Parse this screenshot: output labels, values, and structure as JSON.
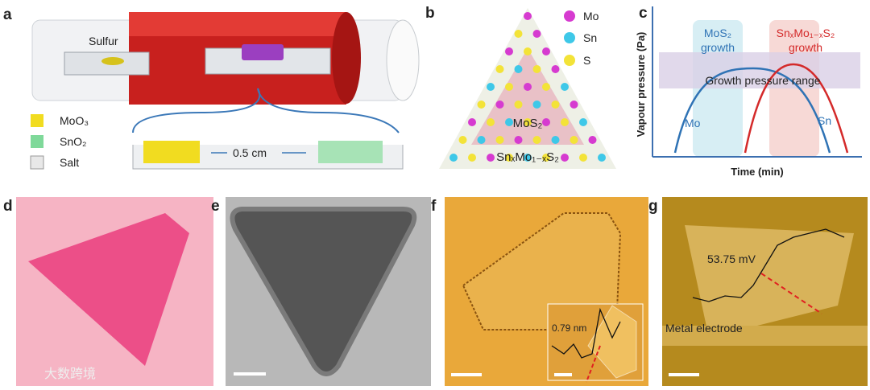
{
  "panels": {
    "a": {
      "label": "a",
      "sulfur": "Sulfur",
      "distance": "0.5 cm",
      "legend": [
        "MoO₃",
        "SnO₂",
        "Salt"
      ]
    },
    "b": {
      "label": "b",
      "legend": [
        "Mo",
        "Sn",
        "S"
      ],
      "core": "MoS₂",
      "shell": "SnₓMo₁₋ₓS₂"
    },
    "c": {
      "label": "c",
      "box1": [
        "MoS₂",
        "growth"
      ],
      "box2": [
        "SnₓMo₁₋ₓS₂",
        "growth"
      ],
      "band": "Growth pressure range",
      "curve1": "Mo",
      "curve2": "Sn",
      "y_axis": "Vapour pressure (Pa)",
      "x_axis": "Time (min)"
    },
    "d": {
      "label": "d"
    },
    "e": {
      "label": "e"
    },
    "f": {
      "label": "f",
      "inset": "0.79 nm"
    },
    "g": {
      "label": "g",
      "potential": "53.75 mV",
      "electrode": "Metal electrode"
    }
  },
  "watermark": "大数跨境"
}
